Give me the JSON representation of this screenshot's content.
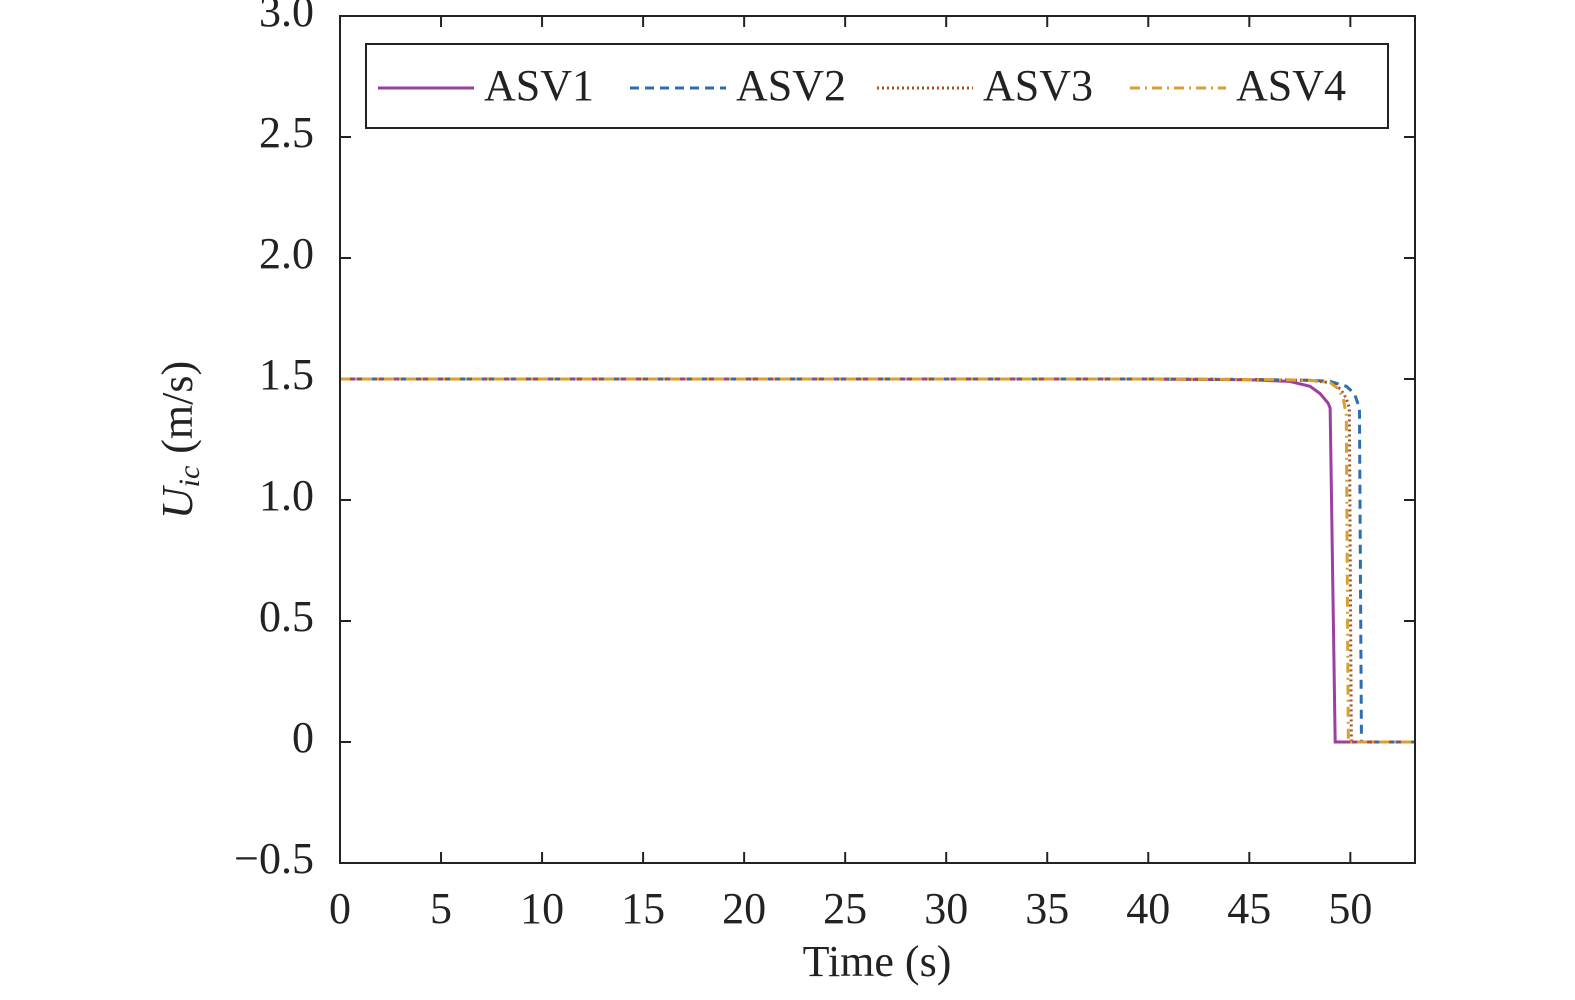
{
  "chart_data": {
    "type": "line",
    "xlabel": "Time (s)",
    "ylabel": {
      "symbol": "U",
      "subscript": "ic",
      "unit": "(m/s)"
    },
    "xlim": [
      0,
      53.2
    ],
    "ylim": [
      -0.5,
      3
    ],
    "xticks": [
      0,
      5,
      10,
      15,
      20,
      25,
      30,
      35,
      40,
      45,
      50
    ],
    "yticks": [
      {
        "value": -0.5,
        "label": "−0.5"
      },
      0,
      0.5,
      {
        "value": 1,
        "label": "1.0"
      },
      1.5,
      {
        "value": 2,
        "label": "2.0"
      },
      2.5,
      {
        "value": 3,
        "label": "3.0"
      }
    ],
    "legend": "top",
    "series": [
      {
        "name": "ASV1",
        "color": "#9b3fa0",
        "linestyle": "solid",
        "x": [
          0,
          40,
          45,
          47,
          48,
          48.5,
          48.9,
          49.0,
          49.25,
          53.2
        ],
        "values": [
          1.5,
          1.5,
          1.497,
          1.49,
          1.47,
          1.44,
          1.4,
          1.38,
          0,
          0
        ]
      },
      {
        "name": "ASV2",
        "color": "#2e6db3",
        "linestyle": "dashed",
        "x": [
          0,
          40,
          45,
          48,
          49,
          49.8,
          50.2,
          50.45,
          50.55,
          53.2
        ],
        "values": [
          1.5,
          1.5,
          1.498,
          1.495,
          1.49,
          1.47,
          1.44,
          1.38,
          0,
          0
        ]
      },
      {
        "name": "ASV3",
        "color": "#a0522d",
        "linestyle": "dotted",
        "x": [
          0,
          40,
          45,
          48,
          49,
          49.5,
          49.8,
          49.95,
          50.05,
          53.2
        ],
        "values": [
          1.5,
          1.5,
          1.498,
          1.494,
          1.485,
          1.46,
          1.42,
          1.38,
          0,
          0
        ]
      },
      {
        "name": "ASV4",
        "color": "#d9a030",
        "linestyle": "dashdot",
        "x": [
          0,
          40,
          45,
          48,
          49,
          49.4,
          49.65,
          49.8,
          49.9,
          53.2
        ],
        "values": [
          1.5,
          1.5,
          1.498,
          1.495,
          1.485,
          1.46,
          1.42,
          1.35,
          0,
          0
        ]
      }
    ]
  }
}
